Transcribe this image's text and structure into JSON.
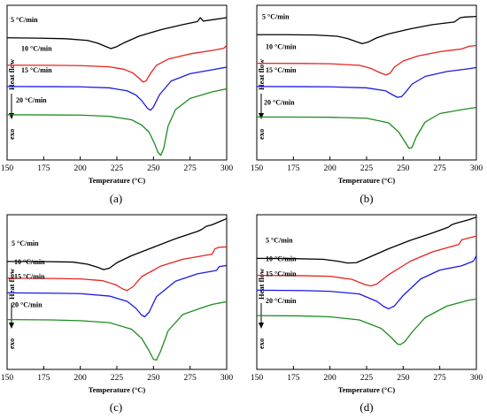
{
  "figure": {
    "ylabel_heat": "Heat  flow",
    "ylabel_exo": "exo"
  },
  "chart_data": [
    {
      "panel_label": "(a)",
      "type": "line",
      "xlabel": "Temperature (°C)",
      "ylabel": "Heat flow (exo ↓)",
      "xlim": [
        150,
        300
      ],
      "xticks": [
        "150",
        "175",
        "200",
        "225",
        "250",
        "275",
        "300"
      ],
      "grid": false,
      "series": [
        {
          "name": "5 °C/min",
          "color": "#000000",
          "x": [
            150,
            170,
            190,
            205,
            212,
            217,
            221,
            225,
            230,
            240,
            255,
            270,
            280,
            282,
            284,
            290,
            300
          ],
          "y": [
            0.79,
            0.788,
            0.784,
            0.773,
            0.755,
            0.735,
            0.72,
            0.733,
            0.758,
            0.8,
            0.842,
            0.875,
            0.895,
            0.92,
            0.898,
            0.906,
            0.92
          ]
        },
        {
          "name": "10 °C/min",
          "color": "#e8231d",
          "x": [
            150,
            180,
            200,
            220,
            230,
            236,
            240,
            243,
            245,
            248,
            252,
            260,
            275,
            290,
            298,
            300
          ],
          "y": [
            0.613,
            0.612,
            0.61,
            0.602,
            0.586,
            0.562,
            0.53,
            0.503,
            0.512,
            0.56,
            0.612,
            0.652,
            0.686,
            0.708,
            0.722,
            0.74
          ]
        },
        {
          "name": "15 °C/min",
          "color": "#1a1ae6",
          "x": [
            150,
            180,
            200,
            220,
            232,
            238,
            242,
            246,
            248,
            250,
            254,
            262,
            275,
            290,
            300
          ],
          "y": [
            0.475,
            0.474,
            0.473,
            0.466,
            0.447,
            0.42,
            0.383,
            0.333,
            0.322,
            0.343,
            0.42,
            0.51,
            0.558,
            0.583,
            0.6
          ]
        },
        {
          "name": "20 °C/min",
          "color": "#1e8c1e",
          "x": [
            150,
            180,
            200,
            220,
            235,
            242,
            247,
            251,
            253,
            255,
            257,
            260,
            265,
            275,
            290,
            300
          ],
          "y": [
            0.292,
            0.291,
            0.29,
            0.282,
            0.26,
            0.225,
            0.18,
            0.1,
            0.05,
            0.03,
            0.075,
            0.22,
            0.325,
            0.398,
            0.44,
            0.46
          ]
        }
      ]
    },
    {
      "panel_label": "(b)",
      "type": "line",
      "xlabel": "Temperature (°C)",
      "ylabel": "Heat flow (exo ↓)",
      "xlim": [
        150,
        300
      ],
      "xticks": [
        "150",
        "175",
        "200",
        "225",
        "250",
        "275",
        "300"
      ],
      "grid": false,
      "series": [
        {
          "name": "5 °C/min",
          "color": "#000000",
          "x": [
            150,
            170,
            190,
            205,
            212,
            218,
            222,
            226,
            232,
            240,
            255,
            270,
            285,
            289,
            292,
            300
          ],
          "y": [
            0.81,
            0.81,
            0.808,
            0.8,
            0.785,
            0.765,
            0.752,
            0.762,
            0.79,
            0.815,
            0.848,
            0.875,
            0.892,
            0.92,
            0.924,
            0.928
          ]
        },
        {
          "name": "10 °C/min",
          "color": "#e8231d",
          "x": [
            150,
            180,
            200,
            220,
            228,
            234,
            238,
            241,
            244,
            250,
            260,
            275,
            290,
            295,
            300
          ],
          "y": [
            0.625,
            0.624,
            0.622,
            0.612,
            0.592,
            0.565,
            0.55,
            0.56,
            0.6,
            0.64,
            0.672,
            0.7,
            0.718,
            0.735,
            0.74
          ]
        },
        {
          "name": "15 °C/min",
          "color": "#1a1ae6",
          "x": [
            150,
            180,
            200,
            225,
            238,
            243,
            246,
            249,
            252,
            256,
            265,
            280,
            295,
            300
          ],
          "y": [
            0.475,
            0.474,
            0.473,
            0.466,
            0.447,
            0.42,
            0.405,
            0.41,
            0.442,
            0.49,
            0.54,
            0.572,
            0.59,
            0.598
          ]
        },
        {
          "name": "20 °C/min",
          "color": "#1e8c1e",
          "x": [
            150,
            180,
            200,
            225,
            240,
            247,
            251,
            254,
            256,
            259,
            265,
            275,
            290,
            300
          ],
          "y": [
            0.278,
            0.277,
            0.276,
            0.27,
            0.24,
            0.18,
            0.12,
            0.075,
            0.08,
            0.15,
            0.245,
            0.3,
            0.325,
            0.34
          ]
        }
      ]
    },
    {
      "panel_label": "(c)",
      "type": "line",
      "xlabel": "Temperature (°C)",
      "ylabel": "Heat flow (exo ↓)",
      "xlim": [
        150,
        300
      ],
      "xticks": [
        "150",
        "175",
        "200",
        "225",
        "250",
        "275",
        "300"
      ],
      "grid": false,
      "series": [
        {
          "name": "5 °C/min",
          "color": "#000000",
          "x": [
            150,
            175,
            195,
            205,
            212,
            216,
            220,
            225,
            235,
            250,
            265,
            280,
            283,
            286,
            290,
            295,
            300
          ],
          "y": [
            0.698,
            0.697,
            0.694,
            0.68,
            0.66,
            0.645,
            0.655,
            0.69,
            0.735,
            0.79,
            0.845,
            0.892,
            0.905,
            0.925,
            0.935,
            0.955,
            0.975
          ]
        },
        {
          "name": "10 °C/min",
          "color": "#e8231d",
          "x": [
            150,
            180,
            200,
            215,
            224,
            229,
            232,
            236,
            242,
            255,
            270,
            290,
            292,
            295,
            300
          ],
          "y": [
            0.59,
            0.588,
            0.585,
            0.574,
            0.548,
            0.52,
            0.51,
            0.535,
            0.6,
            0.668,
            0.712,
            0.745,
            0.78,
            0.79,
            0.792
          ]
        },
        {
          "name": "15 °C/min",
          "color": "#1a1ae6",
          "x": [
            150,
            180,
            200,
            220,
            232,
            238,
            242,
            244,
            247,
            252,
            265,
            280,
            293,
            295,
            300
          ],
          "y": [
            0.495,
            0.493,
            0.49,
            0.474,
            0.44,
            0.395,
            0.35,
            0.34,
            0.37,
            0.47,
            0.57,
            0.618,
            0.64,
            0.665,
            0.672
          ]
        },
        {
          "name": "20 °C/min",
          "color": "#1e8c1e",
          "x": [
            150,
            180,
            200,
            220,
            235,
            242,
            247,
            250,
            252,
            255,
            260,
            270,
            285,
            290,
            300
          ],
          "y": [
            0.322,
            0.32,
            0.315,
            0.302,
            0.26,
            0.2,
            0.12,
            0.065,
            0.06,
            0.12,
            0.25,
            0.355,
            0.405,
            0.42,
            0.438
          ]
        }
      ]
    },
    {
      "panel_label": "(d)",
      "type": "line",
      "xlabel": "Temperature (°C)",
      "ylabel": "Heat flow (exo ↓)",
      "xlim": [
        150,
        300
      ],
      "xticks": [
        "150",
        "175",
        "200",
        "225",
        "250",
        "275",
        "300"
      ],
      "grid": false,
      "series": [
        {
          "name": "5 °C/min",
          "color": "#000000",
          "x": [
            150,
            175,
            195,
            205,
            212,
            218,
            225,
            240,
            255,
            270,
            281,
            283,
            286,
            290,
            295,
            300
          ],
          "y": [
            0.718,
            0.716,
            0.712,
            0.7,
            0.688,
            0.69,
            0.718,
            0.78,
            0.835,
            0.882,
            0.92,
            0.935,
            0.945,
            0.955,
            0.968,
            0.985
          ]
        },
        {
          "name": "10 °C/min",
          "color": "#e8231d",
          "x": [
            150,
            180,
            200,
            215,
            224,
            228,
            232,
            240,
            255,
            270,
            288,
            290,
            294,
            300
          ],
          "y": [
            0.608,
            0.606,
            0.602,
            0.582,
            0.548,
            0.54,
            0.552,
            0.612,
            0.7,
            0.76,
            0.808,
            0.838,
            0.848,
            0.862
          ]
        },
        {
          "name": "15 °C/min",
          "color": "#1a1ae6",
          "x": [
            150,
            180,
            200,
            220,
            232,
            237,
            240,
            244,
            250,
            262,
            275,
            290,
            298,
            300
          ],
          "y": [
            0.512,
            0.51,
            0.505,
            0.488,
            0.44,
            0.405,
            0.392,
            0.41,
            0.478,
            0.585,
            0.642,
            0.67,
            0.7,
            0.735
          ]
        },
        {
          "name": "20 °C/min",
          "color": "#1e8c1e",
          "x": [
            150,
            180,
            200,
            220,
            235,
            242,
            246,
            248,
            251,
            256,
            265,
            280,
            295,
            300
          ],
          "y": [
            0.348,
            0.346,
            0.34,
            0.32,
            0.265,
            0.205,
            0.165,
            0.16,
            0.178,
            0.24,
            0.335,
            0.41,
            0.448,
            0.455
          ]
        }
      ]
    }
  ]
}
